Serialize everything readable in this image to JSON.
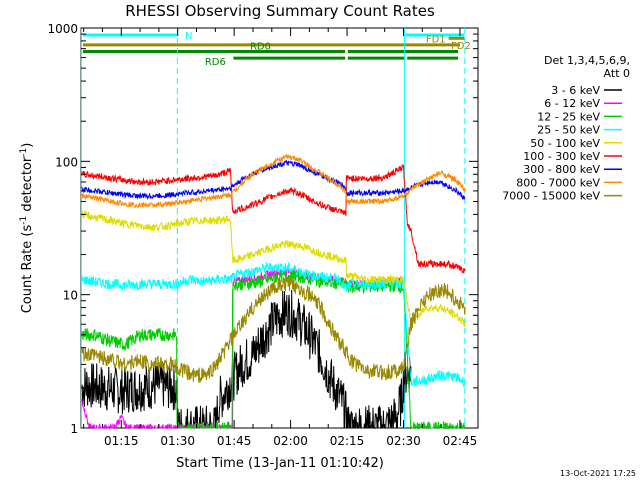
{
  "chart_data": {
    "type": "line",
    "title": "RHESSI Observing Summary Count Rates",
    "xlabel": "Start Time (13-Jan-11 01:10:42)",
    "ylabel": "Count Rate (s⁻¹ detector⁻¹)",
    "ylabel_parts": {
      "main": "Count Rate (s",
      "exp1": "-1",
      "mid": " detector",
      "exp2": "-1",
      "end": ")"
    },
    "ylog": true,
    "ylim": [
      1,
      1000
    ],
    "xlim": [
      64.3,
      169.8
    ],
    "x_unit": "minutes after 00:00 UT, 13-Jan-11",
    "x_ticks": [
      {
        "t": 75,
        "label": "01:15"
      },
      {
        "t": 90,
        "label": "01:30"
      },
      {
        "t": 105,
        "label": "01:45"
      },
      {
        "t": 120,
        "label": "02:00"
      },
      {
        "t": 135,
        "label": "02:15"
      },
      {
        "t": 150,
        "label": "02:30"
      },
      {
        "t": 165,
        "label": "02:45"
      }
    ],
    "y_ticks": [
      {
        "v": 1,
        "label": "1"
      },
      {
        "v": 10,
        "label": "10"
      },
      {
        "v": 100,
        "label": "100"
      },
      {
        "v": 1000,
        "label": "1000"
      }
    ],
    "legend_header": [
      "Det 1,3,4,5,6,9,",
      "Att 0"
    ],
    "legend_position": "right",
    "series": [
      {
        "name": "3 - 6 keV",
        "color": "#000000",
        "values": [
          [
            64.5,
            2.0
          ],
          [
            66,
            2.1
          ],
          [
            70,
            2.0
          ],
          [
            75,
            1.9
          ],
          [
            80,
            2.0
          ],
          [
            85,
            2.1
          ],
          [
            89.9,
            2.0
          ],
          [
            90.1,
            1.0
          ],
          [
            95,
            1.0
          ],
          [
            100,
            1.0
          ],
          [
            101,
            1.6
          ],
          [
            104,
            2.2
          ],
          [
            107,
            3.0
          ],
          [
            110,
            3.5
          ],
          [
            112,
            4.5
          ],
          [
            115,
            6
          ],
          [
            117,
            7
          ],
          [
            119,
            7.5
          ],
          [
            121,
            7
          ],
          [
            123,
            6
          ],
          [
            125,
            5
          ],
          [
            127,
            4
          ],
          [
            129,
            3
          ],
          [
            131,
            2.2
          ],
          [
            134,
            1.5
          ],
          [
            135.5,
            1.0
          ],
          [
            140,
            1.0
          ],
          [
            145,
            1.0
          ],
          [
            148,
            1.2
          ],
          [
            149.5,
            1.6
          ],
          [
            150.2,
            2.5
          ],
          [
            152,
            2.8
          ]
        ]
      },
      {
        "name": "6 - 12 keV",
        "color": "#ff00ff",
        "values": [
          [
            64.5,
            1.6
          ],
          [
            65.5,
            1.3
          ],
          [
            66.5,
            1.0
          ],
          [
            70,
            1.0
          ],
          [
            73,
            1.0
          ],
          [
            75,
            1.2
          ],
          [
            76.5,
            1.0
          ],
          [
            80,
            1.0
          ],
          [
            90,
            1.0
          ],
          [
            95,
            1.0
          ],
          [
            100,
            1.0
          ],
          [
            104.6,
            1.0
          ],
          [
            104.8,
            12.5
          ],
          [
            108,
            13
          ],
          [
            112,
            13.5
          ],
          [
            115,
            14.5
          ],
          [
            118,
            15
          ],
          [
            120,
            14.8
          ],
          [
            123,
            14
          ],
          [
            126,
            13.5
          ],
          [
            130,
            13
          ],
          [
            134,
            12.5
          ],
          [
            134.8,
            12.5
          ],
          [
            135,
            12.2
          ],
          [
            140,
            12
          ],
          [
            145,
            12.5
          ],
          [
            150,
            13
          ]
        ]
      },
      {
        "name": "12 - 25 keV",
        "color": "#00cc00",
        "values": [
          [
            64.5,
            5
          ],
          [
            68,
            5
          ],
          [
            72,
            4.5
          ],
          [
            76,
            4.2
          ],
          [
            80,
            5
          ],
          [
            84,
            5
          ],
          [
            88,
            5
          ],
          [
            89.8,
            5
          ],
          [
            90,
            1.0
          ],
          [
            95,
            1.0
          ],
          [
            100,
            1.0
          ],
          [
            104.5,
            1.0
          ],
          [
            104.7,
            12
          ],
          [
            108,
            12
          ],
          [
            112,
            12.5
          ],
          [
            116,
            13.5
          ],
          [
            119,
            14
          ],
          [
            122,
            13.8
          ],
          [
            125,
            13.2
          ],
          [
            129,
            12.5
          ],
          [
            133,
            12.2
          ],
          [
            134.8,
            12
          ],
          [
            135,
            11.5
          ],
          [
            140,
            11.5
          ],
          [
            145,
            11.8
          ],
          [
            150,
            11.5
          ],
          [
            152,
            1.0
          ],
          [
            158,
            1.0
          ],
          [
            164,
            1.0
          ],
          [
            166.5,
            1.0
          ]
        ]
      },
      {
        "name": "25 - 50 keV",
        "color": "#00ffff",
        "values": [
          [
            64.5,
            13
          ],
          [
            68,
            12.5
          ],
          [
            72,
            12
          ],
          [
            76,
            11.8
          ],
          [
            80,
            12
          ],
          [
            84,
            12
          ],
          [
            88,
            12
          ],
          [
            90,
            12
          ],
          [
            93,
            13
          ],
          [
            97,
            12.5
          ],
          [
            101,
            13
          ],
          [
            104,
            13
          ],
          [
            106,
            14
          ],
          [
            110,
            15
          ],
          [
            114,
            16
          ],
          [
            118,
            16
          ],
          [
            121,
            15.5
          ],
          [
            125,
            14
          ],
          [
            129,
            13.5
          ],
          [
            133,
            13
          ],
          [
            134.8,
            11
          ],
          [
            136,
            12
          ],
          [
            140,
            12
          ],
          [
            145,
            12
          ],
          [
            150,
            12
          ],
          [
            152,
            2.2
          ],
          [
            156,
            2.3
          ],
          [
            160,
            2.5
          ],
          [
            164,
            2.4
          ],
          [
            166.5,
            2.2
          ]
        ]
      },
      {
        "name": "50 - 100 keV",
        "color": "#dddd00",
        "values": [
          [
            64.5,
            40
          ],
          [
            68,
            38
          ],
          [
            72,
            36
          ],
          [
            76,
            34
          ],
          [
            80,
            33
          ],
          [
            84,
            32
          ],
          [
            88,
            33
          ],
          [
            92,
            35
          ],
          [
            96,
            36
          ],
          [
            100,
            36
          ],
          [
            104,
            37
          ],
          [
            104.6,
            18
          ],
          [
            108,
            19
          ],
          [
            112,
            21
          ],
          [
            116,
            23
          ],
          [
            119,
            24
          ],
          [
            122,
            23.5
          ],
          [
            125,
            22
          ],
          [
            129,
            20
          ],
          [
            133,
            18.5
          ],
          [
            134.8,
            18
          ],
          [
            135,
            14
          ],
          [
            140,
            13
          ],
          [
            145,
            13
          ],
          [
            150,
            13
          ],
          [
            152,
            6
          ],
          [
            156,
            8
          ],
          [
            160,
            8
          ],
          [
            164,
            7
          ],
          [
            166.5,
            6
          ]
        ]
      },
      {
        "name": "100 - 300 keV",
        "color": "#ff0000",
        "values": [
          [
            64.5,
            80
          ],
          [
            68,
            78
          ],
          [
            72,
            75
          ],
          [
            76,
            72
          ],
          [
            80,
            70
          ],
          [
            84,
            70
          ],
          [
            88,
            72
          ],
          [
            92,
            74
          ],
          [
            96,
            76
          ],
          [
            100,
            78
          ],
          [
            104,
            85
          ],
          [
            104.6,
            42
          ],
          [
            108,
            45
          ],
          [
            112,
            50
          ],
          [
            116,
            56
          ],
          [
            119,
            60
          ],
          [
            122,
            58
          ],
          [
            125,
            52
          ],
          [
            129,
            46
          ],
          [
            133,
            42
          ],
          [
            134.8,
            40
          ],
          [
            135,
            75
          ],
          [
            140,
            74
          ],
          [
            145,
            76
          ],
          [
            150,
            90
          ],
          [
            151,
            35
          ],
          [
            152,
            30
          ],
          [
            154,
            17
          ],
          [
            158,
            17
          ],
          [
            162,
            17
          ],
          [
            166.5,
            15
          ]
        ]
      },
      {
        "name": "300 - 800 keV",
        "color": "#0000ff",
        "values": [
          [
            64.5,
            62
          ],
          [
            68,
            60
          ],
          [
            72,
            58
          ],
          [
            76,
            56
          ],
          [
            80,
            55
          ],
          [
            84,
            55
          ],
          [
            88,
            56
          ],
          [
            92,
            58
          ],
          [
            96,
            59
          ],
          [
            100,
            61
          ],
          [
            104,
            63
          ],
          [
            105,
            66
          ],
          [
            108,
            76
          ],
          [
            112,
            85
          ],
          [
            116,
            93
          ],
          [
            119,
            97
          ],
          [
            122,
            94
          ],
          [
            125,
            86
          ],
          [
            129,
            76
          ],
          [
            133,
            68
          ],
          [
            134.8,
            63
          ],
          [
            135,
            58
          ],
          [
            140,
            58
          ],
          [
            145,
            58
          ],
          [
            150,
            60
          ],
          [
            153,
            65
          ],
          [
            157,
            70
          ],
          [
            160,
            70
          ],
          [
            164,
            60
          ],
          [
            166.5,
            52
          ]
        ]
      },
      {
        "name": "800 - 7000 keV",
        "color": "#ff8800",
        "values": [
          [
            64.5,
            55
          ],
          [
            68,
            53
          ],
          [
            72,
            50
          ],
          [
            76,
            48
          ],
          [
            80,
            47
          ],
          [
            84,
            47
          ],
          [
            88,
            48
          ],
          [
            92,
            50
          ],
          [
            96,
            52
          ],
          [
            100,
            54
          ],
          [
            104,
            56
          ],
          [
            105,
            60
          ],
          [
            108,
            73
          ],
          [
            112,
            87
          ],
          [
            116,
            100
          ],
          [
            119,
            108
          ],
          [
            122,
            104
          ],
          [
            125,
            92
          ],
          [
            129,
            78
          ],
          [
            133,
            66
          ],
          [
            134.8,
            58
          ],
          [
            135,
            50
          ],
          [
            140,
            50
          ],
          [
            145,
            50
          ],
          [
            150,
            55
          ],
          [
            153,
            64
          ],
          [
            157,
            75
          ],
          [
            160,
            82
          ],
          [
            164,
            72
          ],
          [
            166.5,
            60
          ]
        ]
      },
      {
        "name": "7000 - 15000 keV",
        "color": "#998800",
        "values": [
          [
            64.5,
            3.5
          ],
          [
            68,
            3.5
          ],
          [
            72,
            3.3
          ],
          [
            76,
            3.0
          ],
          [
            80,
            3.2
          ],
          [
            84,
            3.0
          ],
          [
            88,
            3.0
          ],
          [
            90,
            2.8
          ],
          [
            94,
            2.5
          ],
          [
            98,
            2.5
          ],
          [
            101,
            3.2
          ],
          [
            104,
            4.5
          ],
          [
            107,
            6
          ],
          [
            110,
            8
          ],
          [
            113,
            10
          ],
          [
            116,
            11.5
          ],
          [
            119,
            12
          ],
          [
            122,
            11.5
          ],
          [
            125,
            10
          ],
          [
            128,
            8
          ],
          [
            131,
            5.5
          ],
          [
            134,
            4
          ],
          [
            136,
            3.2
          ],
          [
            140,
            2.7
          ],
          [
            145,
            2.6
          ],
          [
            150,
            2.8
          ],
          [
            152,
            6
          ],
          [
            155,
            9
          ],
          [
            158,
            10.5
          ],
          [
            161,
            11
          ],
          [
            164,
            9
          ],
          [
            166.5,
            8
          ]
        ]
      }
    ],
    "bars": [
      {
        "label": "N",
        "color": "#00ffff",
        "y": 10,
        "segments": [
          [
            64.8,
            89.8
          ],
          [
            150.5,
            166.2
          ]
        ]
      },
      {
        "label": "FD1",
        "color": "#998800",
        "y": 9,
        "segments": [
          [
            162,
            166.2
          ]
        ]
      },
      {
        "label": "FD2",
        "color": "#998800",
        "y": 7,
        "segments": [
          [
            64.8,
            165
          ]
        ]
      },
      {
        "label": "RD0",
        "color": "#008800",
        "y": 5,
        "segments": [
          [
            64.8,
            134.5
          ],
          [
            135.2,
            164.5
          ]
        ]
      },
      {
        "label": "RD6",
        "color": "#008800",
        "y": 3,
        "segments": [
          [
            104.8,
            134.5
          ],
          [
            135.2,
            150.3
          ],
          [
            151,
            164.5
          ]
        ]
      }
    ],
    "vlines": [
      {
        "t": 64.4,
        "color": "#00ffff",
        "dashed": false
      },
      {
        "t": 89.9,
        "color": "#00ffff",
        "dashed": true
      },
      {
        "t": 150.3,
        "color": "#00ffff",
        "dashed": false
      },
      {
        "t": 166.3,
        "color": "#00ffff",
        "dashed": true
      }
    ],
    "grid": false,
    "footer_timestamp": "13-Oct-2021 17:25"
  }
}
